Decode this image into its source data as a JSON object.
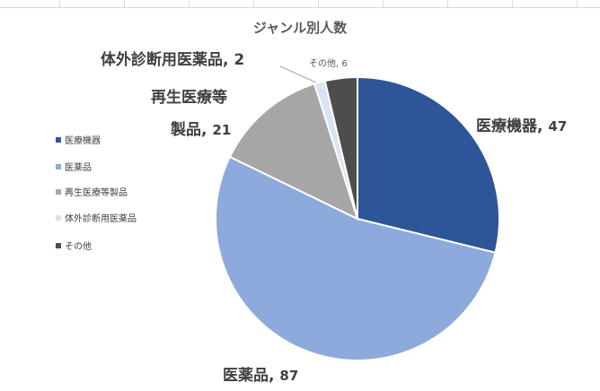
{
  "chart_data": {
    "type": "pie",
    "title": "ジャンル別人数",
    "categories": [
      "医療機器",
      "医薬品",
      "再生医療等製品",
      "体外診断用医薬品",
      "その他"
    ],
    "values": [
      47,
      87,
      21,
      2,
      6
    ],
    "colors": [
      "#2e5597",
      "#8eaadc",
      "#a6a6a6",
      "#dae3f3",
      "#4d4d4d"
    ],
    "legend_position": "left",
    "data_labels": [
      {
        "lines": [
          "医療機器"
        ],
        "value": "47"
      },
      {
        "lines": [
          "医薬品"
        ],
        "value": "87"
      },
      {
        "lines": [
          "再生医療等",
          "製品"
        ],
        "value": "21"
      },
      {
        "lines": [
          "体外診断用医薬品"
        ],
        "value": "2"
      },
      {
        "lines": [
          "その他"
        ],
        "value": "6"
      }
    ]
  }
}
